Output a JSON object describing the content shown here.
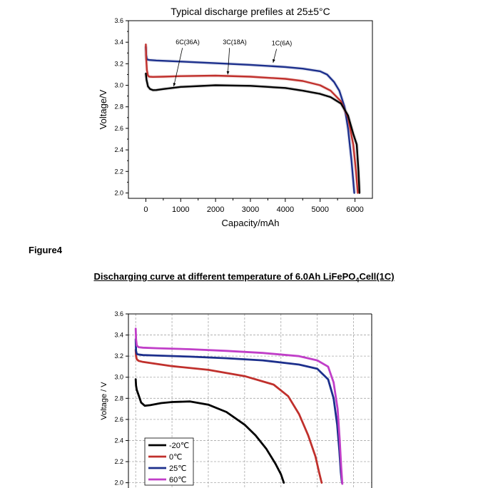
{
  "figure_label": "Figure4",
  "section_title": {
    "prefix": "Discharging curve at different temperature of 6.0Ah LiFePO",
    "subscript": "4",
    "suffix": "Cell(1C)"
  },
  "colors": {
    "black": "#000000",
    "red": "#c0302c",
    "blue": "#1c2f8c",
    "magenta": "#c03ec8",
    "grid": "#a8a8a8"
  },
  "chart_data": [
    {
      "type": "line",
      "title": "Typical discharge prefiles at 25±5°C",
      "xlabel": "Capacity/mAh",
      "ylabel": "Voltage/V",
      "xlim": [
        -500,
        6500
      ],
      "ylim": [
        1.95,
        3.6
      ],
      "x_ticks": [
        "0",
        "1000",
        "2000",
        "3000",
        "4000",
        "5000",
        "6000"
      ],
      "y_ticks": [
        "2.0",
        "2.2",
        "2.4",
        "2.6",
        "2.8",
        "3.0",
        "3.2",
        "3.4",
        "3.6"
      ],
      "annotations": [
        "6C(36A)",
        "3C(18A)",
        "1C(6A)"
      ],
      "series": [
        {
          "name": "1C(6A)",
          "color": "#1c2f8c",
          "x": [
            0,
            10,
            30,
            100,
            300,
            1000,
            2000,
            3000,
            4000,
            4500,
            5000,
            5200,
            5400,
            5550,
            5700,
            5800,
            5900,
            5980
          ],
          "y": [
            3.36,
            3.28,
            3.24,
            3.235,
            3.23,
            3.22,
            3.205,
            3.19,
            3.17,
            3.155,
            3.13,
            3.1,
            3.03,
            2.95,
            2.8,
            2.6,
            2.3,
            2.0
          ]
        },
        {
          "name": "3C(18A)",
          "color": "#c0302c",
          "x": [
            0,
            10,
            30,
            60,
            100,
            200,
            500,
            1000,
            2000,
            3000,
            4000,
            4500,
            5000,
            5300,
            5600,
            5800,
            5950,
            6030,
            6080
          ],
          "y": [
            3.38,
            3.25,
            3.14,
            3.09,
            3.08,
            3.078,
            3.08,
            3.085,
            3.09,
            3.08,
            3.06,
            3.04,
            3.0,
            2.95,
            2.85,
            2.7,
            2.45,
            2.2,
            2.0
          ]
        },
        {
          "name": "6C(36A)",
          "color": "#000000",
          "x": [
            0,
            20,
            60,
            120,
            200,
            300,
            500,
            1000,
            2000,
            3000,
            4000,
            4500,
            5000,
            5300,
            5600,
            5800,
            5950,
            6050,
            6100,
            6130
          ],
          "y": [
            3.11,
            3.05,
            2.99,
            2.965,
            2.955,
            2.956,
            2.965,
            2.985,
            3.0,
            2.995,
            2.975,
            2.95,
            2.92,
            2.89,
            2.83,
            2.72,
            2.55,
            2.45,
            2.2,
            2.0
          ]
        }
      ]
    },
    {
      "type": "line",
      "title": "",
      "xlabel": "",
      "ylabel": "Voltage / V",
      "xlim": [
        -200,
        6500
      ],
      "ylim": [
        1.95,
        3.6
      ],
      "grid": true,
      "x_ticks": [],
      "y_ticks": [
        "2.0",
        "2.2",
        "2.4",
        "2.6",
        "2.8",
        "3.0",
        "3.2",
        "3.4",
        "3.6"
      ],
      "legend": [
        "-20℃",
        "0℃",
        "25℃",
        "60℃"
      ],
      "series": [
        {
          "name": "-20℃",
          "color": "#000000",
          "x": [
            0,
            10,
            30,
            80,
            150,
            250,
            400,
            700,
            1000,
            1500,
            2000,
            2500,
            3000,
            3300,
            3600,
            3850,
            4000,
            4080
          ],
          "y": [
            2.98,
            2.92,
            2.88,
            2.83,
            2.76,
            2.73,
            2.735,
            2.755,
            2.765,
            2.77,
            2.74,
            2.67,
            2.55,
            2.45,
            2.32,
            2.18,
            2.08,
            2.0
          ]
        },
        {
          "name": "0℃",
          "color": "#c0302c",
          "x": [
            0,
            10,
            30,
            80,
            200,
            500,
            1000,
            2000,
            3000,
            3800,
            4200,
            4500,
            4750,
            4950,
            5050,
            5120
          ],
          "y": [
            3.26,
            3.2,
            3.17,
            3.155,
            3.145,
            3.13,
            3.105,
            3.07,
            3.01,
            2.93,
            2.82,
            2.65,
            2.45,
            2.25,
            2.1,
            2.0
          ]
        },
        {
          "name": "25℃",
          "color": "#1c2f8c",
          "x": [
            0,
            10,
            30,
            80,
            200,
            600,
            1500,
            2500,
            3500,
            4500,
            5000,
            5300,
            5450,
            5550,
            5610,
            5650,
            5680
          ],
          "y": [
            3.36,
            3.25,
            3.22,
            3.215,
            3.21,
            3.205,
            3.195,
            3.18,
            3.16,
            3.12,
            3.08,
            2.98,
            2.8,
            2.55,
            2.3,
            2.1,
            2.0
          ]
        },
        {
          "name": "60℃",
          "color": "#c03ec8",
          "x": [
            0,
            10,
            30,
            80,
            200,
            600,
            1500,
            2500,
            3500,
            4500,
            5000,
            5300,
            5450,
            5560,
            5620,
            5660,
            5690
          ],
          "y": [
            3.46,
            3.36,
            3.3,
            3.285,
            3.28,
            3.275,
            3.265,
            3.25,
            3.23,
            3.2,
            3.16,
            3.1,
            2.95,
            2.7,
            2.4,
            2.15,
            1.99
          ]
        }
      ]
    }
  ]
}
